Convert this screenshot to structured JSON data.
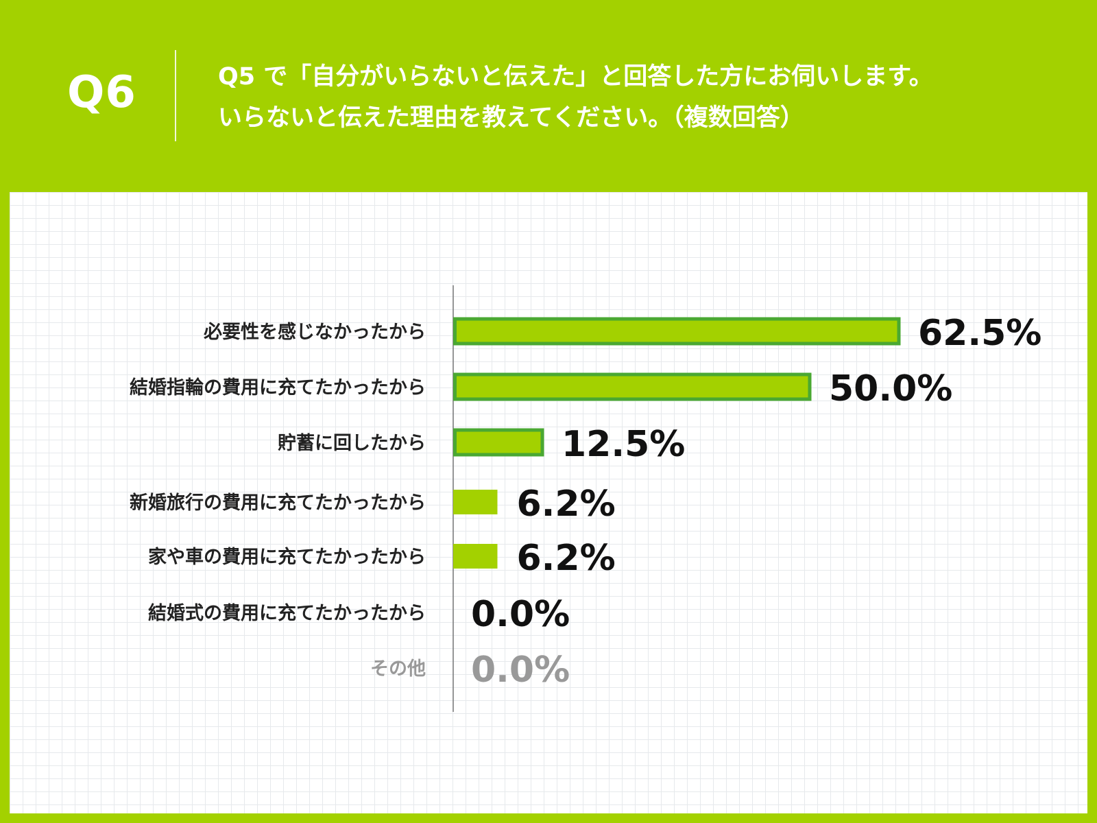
{
  "header": {
    "question_number": "Q6",
    "question_line1": "Q5 で「自分がいらないと伝えた」と回答した方にお伺いします。",
    "question_line2": "いらないと伝えた理由を教えてください。（複数回答）"
  },
  "colors": {
    "background": "#a3d100",
    "bar_fill": "#a3d100",
    "bar_outline": "#4aa832",
    "text": "#111111",
    "muted_text": "#999999"
  },
  "chart_data": {
    "type": "bar",
    "orientation": "horizontal",
    "categories": [
      "必要性を感じなかったから",
      "結婚指輪の費用に充てたかったから",
      "貯蓄に回したから",
      "新婚旅行の費用に充てたかったから",
      "家や車の費用に充てたかったから",
      "結婚式の費用に充てたかったから",
      "その他"
    ],
    "values": [
      62.5,
      50.0,
      12.5,
      6.2,
      6.2,
      0.0,
      0.0
    ],
    "value_labels": [
      "62.5%",
      "50.0%",
      "12.5%",
      "6.2%",
      "6.2%",
      "0.0%",
      "0.0%"
    ],
    "outlined": [
      true,
      true,
      true,
      false,
      false,
      false,
      false
    ],
    "muted": [
      false,
      false,
      false,
      false,
      false,
      false,
      true
    ],
    "xlim": [
      0,
      100
    ],
    "grid": true
  }
}
